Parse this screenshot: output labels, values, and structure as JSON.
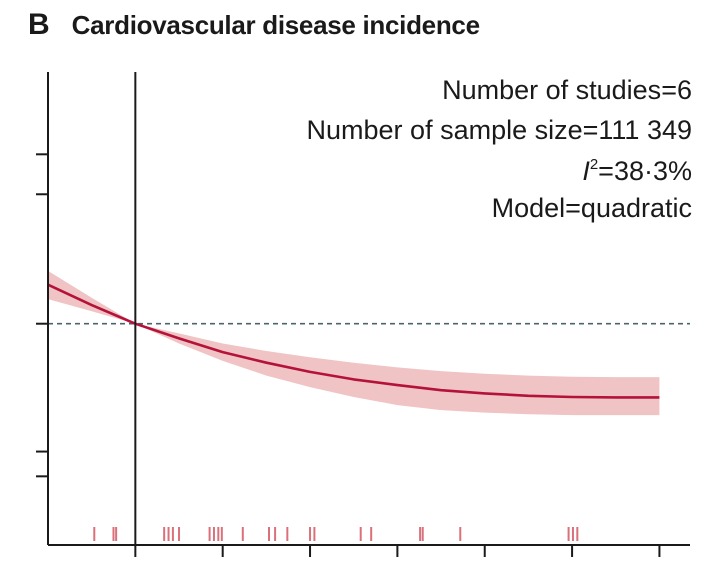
{
  "panel": {
    "letter": "B",
    "title": "Cardiovascular disease incidence"
  },
  "annotations": [
    {
      "label": "Number of studies",
      "value": "6"
    },
    {
      "label": "Number of sample size",
      "value": "111 349"
    },
    {
      "label": "I",
      "superscript": "2",
      "value": "38·3%"
    },
    {
      "label": "Model",
      "value": "quadratic"
    }
  ],
  "colors": {
    "curve": "#b5123a",
    "band": "#f0c4c4",
    "reference_line": "#4a6470",
    "rug": "#d9707a",
    "axis": "#1a1a1a"
  },
  "chart_data": {
    "type": "line",
    "title": "Cardiovascular disease incidence",
    "xlabel": "",
    "ylabel": "",
    "x_tick_positions": [
      0,
      1,
      2,
      3,
      4,
      5,
      6
    ],
    "x_tick_labels": [],
    "y_tick_values": [
      0.62,
      0.67,
      1.0,
      1.5,
      1.7
    ],
    "y_tick_labels": [],
    "xlim": [
      -1,
      6.35
    ],
    "ylim": [
      0.5,
      2.2
    ],
    "reference_x": 0,
    "reference_y": 1.0,
    "series": [
      {
        "x": [
          -1.0,
          -0.5,
          0.0,
          0.5,
          1.0,
          1.5,
          2.0,
          2.5,
          3.0,
          3.5,
          4.0,
          4.5,
          5.0,
          5.5,
          6.0
        ],
        "y": [
          1.13,
          1.06,
          1.0,
          0.955,
          0.915,
          0.885,
          0.86,
          0.84,
          0.825,
          0.812,
          0.804,
          0.798,
          0.795,
          0.794,
          0.794
        ],
        "lower": [
          1.08,
          1.04,
          1.0,
          0.94,
          0.89,
          0.85,
          0.82,
          0.795,
          0.775,
          0.763,
          0.757,
          0.753,
          0.751,
          0.751,
          0.751
        ],
        "upper": [
          1.18,
          1.085,
          1.0,
          0.97,
          0.94,
          0.918,
          0.9,
          0.885,
          0.872,
          0.862,
          0.855,
          0.85,
          0.847,
          0.846,
          0.846
        ]
      }
    ],
    "rug_x": [
      -0.47,
      -0.25,
      -0.22,
      0.33,
      0.38,
      0.43,
      0.5,
      0.85,
      0.9,
      0.95,
      0.99,
      1.23,
      1.53,
      1.6,
      1.74,
      2.0,
      2.05,
      2.58,
      2.7,
      3.26,
      3.29,
      3.72,
      4.96,
      5.01,
      5.06
    ]
  }
}
